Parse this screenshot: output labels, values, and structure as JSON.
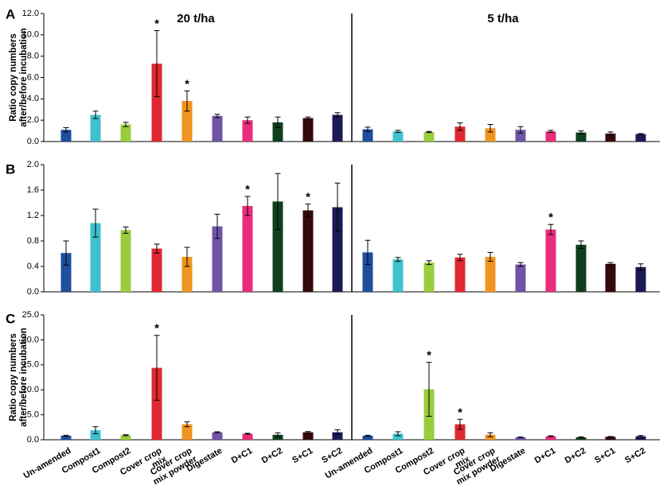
{
  "figure": {
    "panels": [
      "A",
      "B",
      "C"
    ],
    "group_titles": [
      "20 t/ha",
      "5 t/ha"
    ],
    "ylabel": [
      "Ratio copy numbers",
      "after/before incubation"
    ]
  },
  "colors": [
    "#1f4e9c",
    "#3ec1cf",
    "#9acd3c",
    "#e02830",
    "#f0951f",
    "#7054a8",
    "#ea2d7a",
    "#0f3f1e",
    "#35080c",
    "#1b1a55"
  ],
  "chart_data": [
    {
      "type": "bar",
      "panel": "A",
      "title": "",
      "group_titles": [
        "20 t/ha",
        "5 t/ha"
      ],
      "xlabel": "",
      "ylabel": "Ratio copy numbers after/before incubation",
      "ylim": [
        0,
        12
      ],
      "yticks": [
        "0.0",
        "2.0",
        "4.0",
        "6.0",
        "8.0",
        "10.0",
        "12.0"
      ],
      "groups": [
        {
          "name": "20 t/ha",
          "values": [
            1.1,
            2.5,
            1.6,
            7.3,
            3.8,
            2.4,
            2.0,
            1.8,
            2.2,
            2.5
          ],
          "errors": [
            0.2,
            0.35,
            0.2,
            3.1,
            0.95,
            0.15,
            0.3,
            0.5,
            0.1,
            0.2
          ],
          "significant": [
            false,
            false,
            false,
            true,
            true,
            false,
            false,
            false,
            false,
            false
          ]
        },
        {
          "name": "5 t/ha",
          "values": [
            1.15,
            0.95,
            0.9,
            1.4,
            1.25,
            1.1,
            0.95,
            0.85,
            0.75,
            0.7
          ],
          "errors": [
            0.2,
            0.1,
            0.05,
            0.35,
            0.35,
            0.3,
            0.1,
            0.15,
            0.15,
            0.05
          ],
          "significant": [
            false,
            false,
            false,
            false,
            false,
            false,
            false,
            false,
            false,
            false
          ]
        }
      ]
    },
    {
      "type": "bar",
      "panel": "B",
      "title": "",
      "group_titles": [],
      "xlabel": "",
      "ylabel": "",
      "ylim": [
        0,
        2
      ],
      "yticks": [
        "0.0",
        "0.4",
        "0.8",
        "1.2",
        "1.6",
        "2.0"
      ],
      "groups": [
        {
          "name": "20 t/ha",
          "values": [
            0.61,
            1.08,
            0.97,
            0.68,
            0.55,
            1.03,
            1.35,
            1.42,
            1.28,
            1.33
          ],
          "errors": [
            0.19,
            0.22,
            0.05,
            0.07,
            0.15,
            0.19,
            0.15,
            0.44,
            0.1,
            0.38
          ],
          "significant": [
            false,
            false,
            false,
            false,
            false,
            false,
            true,
            false,
            true,
            false
          ]
        },
        {
          "name": "5 t/ha",
          "values": [
            0.62,
            0.51,
            0.46,
            0.54,
            0.55,
            0.43,
            0.98,
            0.74,
            0.44,
            0.39
          ],
          "errors": [
            0.19,
            0.03,
            0.03,
            0.05,
            0.07,
            0.03,
            0.08,
            0.06,
            0.02,
            0.05
          ],
          "significant": [
            false,
            false,
            false,
            false,
            false,
            false,
            true,
            false,
            false,
            false
          ]
        }
      ]
    },
    {
      "type": "bar",
      "panel": "C",
      "title": "",
      "group_titles": [],
      "xlabel": "",
      "ylabel": "Ratio copy numbers after/before incubation",
      "ylim": [
        0,
        25
      ],
      "yticks": [
        "0.0",
        "5.0",
        "10.0",
        "15.0",
        "20.0",
        "25.0"
      ],
      "categories": [
        "Un-amended",
        "Compost1",
        "Compost2",
        "Cover crop mix",
        "Cover crop mix powder",
        "Digestate",
        "D+C1",
        "D+C2",
        "S+C1",
        "S+C2"
      ],
      "category_lines": [
        [
          "Un-amended"
        ],
        [
          "Compost1"
        ],
        [
          "Compost2"
        ],
        [
          "Cover crop",
          "mix"
        ],
        [
          "Cover crop",
          "mix powder"
        ],
        [
          "Digestate"
        ],
        [
          "D+C1"
        ],
        [
          "D+C2"
        ],
        [
          "S+C1"
        ],
        [
          "S+C2"
        ]
      ],
      "groups": [
        {
          "name": "20 t/ha",
          "values": [
            0.8,
            1.9,
            0.9,
            14.4,
            3.1,
            1.5,
            1.2,
            1.0,
            1.5,
            1.5
          ],
          "errors": [
            0.1,
            0.7,
            0.1,
            6.5,
            0.5,
            0.1,
            0.1,
            0.4,
            0.15,
            0.5
          ],
          "significant": [
            false,
            false,
            false,
            true,
            false,
            false,
            false,
            false,
            false,
            false
          ]
        },
        {
          "name": "5 t/ha",
          "values": [
            0.8,
            1.2,
            10.1,
            3.1,
            1.0,
            0.5,
            0.7,
            0.5,
            0.6,
            0.7
          ],
          "errors": [
            0.1,
            0.4,
            5.4,
            1.0,
            0.4,
            0.05,
            0.1,
            0.1,
            0.05,
            0.15
          ],
          "significant": [
            false,
            false,
            true,
            true,
            false,
            false,
            false,
            false,
            false,
            false
          ]
        }
      ]
    }
  ]
}
